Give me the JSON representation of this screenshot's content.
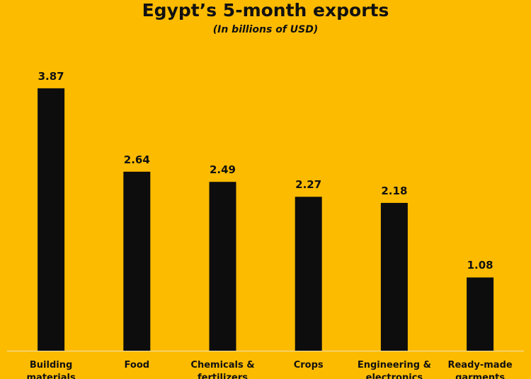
{
  "chart_data": {
    "type": "bar",
    "title": "Egypt’s 5-month exports",
    "subtitle": "(In billions of USD)",
    "categories": [
      "Building materials",
      "Food",
      "Chemicals & fertilizers",
      "Crops",
      "Engineering & electronics",
      "Ready-made garments"
    ],
    "values": [
      3.87,
      2.64,
      2.49,
      2.27,
      2.18,
      1.08
    ],
    "color": "#0d0d0d"
  }
}
